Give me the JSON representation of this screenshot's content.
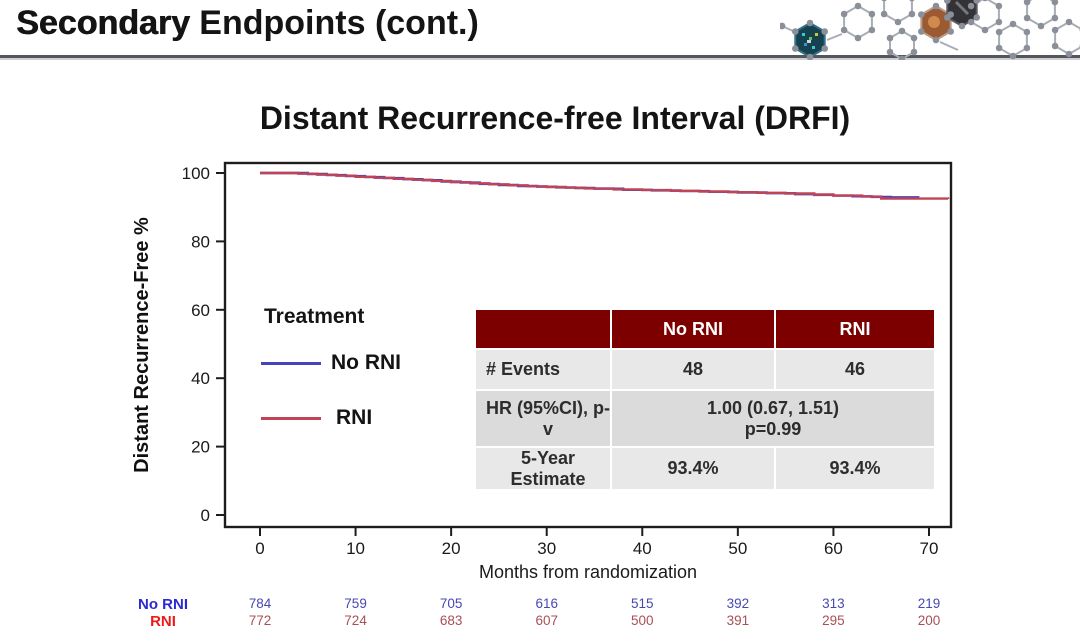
{
  "page": {
    "title_primary": "Secondary",
    "title_secondary": " Endpoints (cont.)"
  },
  "chart_data": {
    "type": "line",
    "subtype": "kaplan-meier-step",
    "title": "Distant Recurrence-free Interval (DRFI)",
    "xlabel": "Months from randomization",
    "ylabel": "Distant Recurrence-Free %",
    "xlim": [
      0,
      72
    ],
    "ylim": [
      0,
      100
    ],
    "x_ticks": [
      0,
      10,
      20,
      30,
      40,
      50,
      60,
      70
    ],
    "y_ticks": [
      0,
      20,
      40,
      60,
      80,
      100
    ],
    "grid": false,
    "legend": {
      "title": "Treatment",
      "position": "inside-left",
      "entries": [
        {
          "label": "No RNI",
          "color": "#4444c0"
        },
        {
          "label": "RNI",
          "color": "#c04455"
        }
      ]
    },
    "series": [
      {
        "name": "No RNI",
        "color": "#4444c0",
        "step": true,
        "points": [
          [
            0,
            100
          ],
          [
            3,
            100
          ],
          [
            5,
            99.7
          ],
          [
            7,
            99.4
          ],
          [
            9,
            99.1
          ],
          [
            11,
            98.8
          ],
          [
            13,
            98.5
          ],
          [
            15,
            98.2
          ],
          [
            17,
            97.9
          ],
          [
            19,
            97.5
          ],
          [
            21,
            97.2
          ],
          [
            23,
            96.8
          ],
          [
            25,
            96.5
          ],
          [
            27,
            96.2
          ],
          [
            29,
            96.0
          ],
          [
            31,
            95.8
          ],
          [
            33,
            95.6
          ],
          [
            35,
            95.4
          ],
          [
            38,
            95.1
          ],
          [
            41,
            94.9
          ],
          [
            44,
            94.7
          ],
          [
            47,
            94.5
          ],
          [
            50,
            94.3
          ],
          [
            53,
            94.1
          ],
          [
            56,
            93.8
          ],
          [
            58,
            93.6
          ],
          [
            60,
            93.4
          ],
          [
            62,
            93.2
          ],
          [
            64,
            93.0
          ],
          [
            66,
            92.9
          ],
          [
            69,
            92.9
          ]
        ]
      },
      {
        "name": "RNI",
        "color": "#c04455",
        "step": true,
        "points": [
          [
            0,
            100
          ],
          [
            2,
            100
          ],
          [
            4,
            99.8
          ],
          [
            6,
            99.5
          ],
          [
            8,
            99.2
          ],
          [
            10,
            98.9
          ],
          [
            12,
            98.6
          ],
          [
            14,
            98.3
          ],
          [
            16,
            98.0
          ],
          [
            18,
            97.7
          ],
          [
            20,
            97.3
          ],
          [
            22,
            97.0
          ],
          [
            24,
            96.7
          ],
          [
            26,
            96.4
          ],
          [
            28,
            96.1
          ],
          [
            30,
            95.9
          ],
          [
            32,
            95.7
          ],
          [
            34,
            95.5
          ],
          [
            37,
            95.2
          ],
          [
            40,
            95.0
          ],
          [
            43,
            94.8
          ],
          [
            46,
            94.6
          ],
          [
            49,
            94.4
          ],
          [
            52,
            94.2
          ],
          [
            55,
            94.0
          ],
          [
            58,
            93.7
          ],
          [
            60,
            93.4
          ],
          [
            63,
            93.1
          ],
          [
            65,
            92.5
          ],
          [
            72,
            92.4
          ]
        ]
      }
    ],
    "at_risk": {
      "months": [
        0,
        10,
        20,
        30,
        40,
        50,
        60,
        70
      ],
      "rows": [
        {
          "label": "No RNI",
          "label_color": "#2a2ad2",
          "value_color": "#4848b4",
          "counts": [
            784,
            759,
            705,
            616,
            515,
            392,
            313,
            219
          ]
        },
        {
          "label": "RNI",
          "label_color": "#ee1a1a",
          "value_color": "#a85055",
          "counts": [
            772,
            724,
            683,
            607,
            500,
            391,
            295,
            200
          ]
        }
      ]
    }
  },
  "stats_table": {
    "header_bg": "#7d0000",
    "columns": [
      "",
      "No RNI",
      "RNI"
    ],
    "rows": [
      {
        "label": "# Events",
        "no_rni": "48",
        "rni": "46"
      },
      {
        "label": "HR (95%CI), p-v",
        "merged_line1": "1.00 (0.67, 1.51)",
        "merged_line2": "p=0.99"
      },
      {
        "label": "5-Year Estimate",
        "no_rni": "93.4%",
        "rni": "93.4%"
      }
    ]
  }
}
